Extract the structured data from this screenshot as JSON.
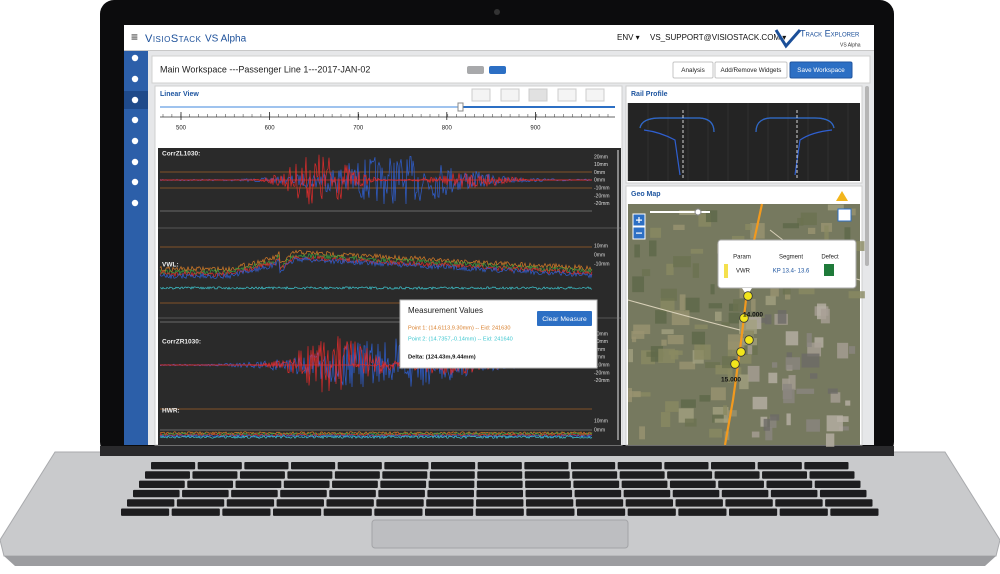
{
  "header": {
    "brand": "VisioStack",
    "edition": "VS Alpha",
    "env": "ENV ▾",
    "user": "VS_SUPPORT@VISIOSTACK.COM ▾",
    "product": "Track Explorer",
    "product_edition": "VS Alpha"
  },
  "workspace": {
    "title": "Main Workspace ---Passenger Line 1---2017-JAN-02",
    "buttons": [
      "Analysis",
      "Add/Remove Widgets",
      "Save Workspace"
    ]
  },
  "linear_view": {
    "title": "Linear View",
    "ruler": [
      "500",
      "600",
      "700",
      "800",
      "900"
    ],
    "channels": [
      {
        "label": "CorrZL1030:",
        "scale": [
          "20mm",
          "10mm",
          "0mm",
          "0mm",
          "-10mm",
          "-20mm",
          "-20mm"
        ]
      },
      {
        "label": "VWL:",
        "scale": [
          "10mm",
          "0mm",
          "-10mm"
        ]
      },
      {
        "label": "CorrZR1030:",
        "scale": [
          "20mm",
          "10mm",
          "0mm",
          "0mm",
          "-10mm",
          "-20mm",
          "-20mm"
        ]
      },
      {
        "label": "HWR:",
        "scale": [
          "10mm",
          "0mm"
        ]
      }
    ]
  },
  "measurement": {
    "title": "Measurement Values",
    "button": "Clear Measure",
    "point1": "Point 1: (14.6113,9.30mm) -- Eid: 241630",
    "point2": "Point 2: (14.7357,-0.14mm) -- Eid: 241640",
    "delta": "Delta: (124.43m,9.44mm)"
  },
  "rail_profile": {
    "title": "Rail Profile"
  },
  "geo_map": {
    "title": "Geo Map",
    "table": {
      "headers": [
        "Param",
        "Segment",
        "Defect"
      ],
      "row": [
        "VWR",
        "KP 13.4- 13.6"
      ]
    },
    "markers": [
      "14.000",
      "15.000"
    ]
  }
}
